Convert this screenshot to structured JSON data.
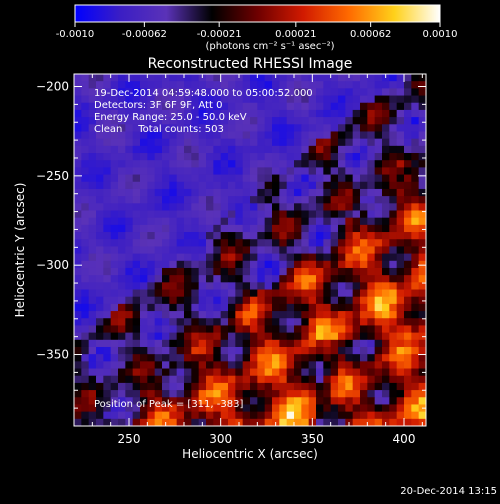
{
  "chart_data": {
    "type": "heatmap",
    "title": "Reconstructed RHESSI Image",
    "xlabel": "Heliocentric X (arcsec)",
    "ylabel": "Heliocentric Y (arcsec)",
    "xlim": [
      220,
      412
    ],
    "ylim": [
      -390,
      -193
    ],
    "x_ticks": [
      250,
      300,
      350,
      400
    ],
    "y_ticks": [
      -350,
      -300,
      -250,
      -200
    ],
    "colorbar": {
      "range": [
        -0.001,
        0.001
      ],
      "ticks": [
        "-0.0010",
        "-0.00062",
        "-0.00021",
        "0.00021",
        "0.00062",
        "0.0010"
      ],
      "tick_values": [
        -0.001,
        -0.00062,
        -0.00021,
        0.00021,
        0.00062,
        0.001
      ],
      "unit_label": "(photons cm⁻² s⁻¹ asec⁻²)",
      "colors": [
        "#0000ff",
        "#3b1ec4",
        "#5a32b8",
        "#000000",
        "#6e0000",
        "#d11a00",
        "#ff6a00",
        "#ffd11a",
        "#ffffff"
      ]
    },
    "annotations": [
      "19-Dec-2014 04:59:48.000 to 05:00:52.000",
      "Detectors: 3F 6F 9F, Att 0",
      "Energy Range: 25.0 - 50.0 keV",
      "Clean     Total counts: 503"
    ],
    "peak_text": "Position of Peak = [311, -383]",
    "peak_position": [
      311,
      -383
    ],
    "pixel_grid": {
      "cols": 48,
      "rows": 49
    }
  },
  "footer_timestamp": "20-Dec-2014 13:15"
}
